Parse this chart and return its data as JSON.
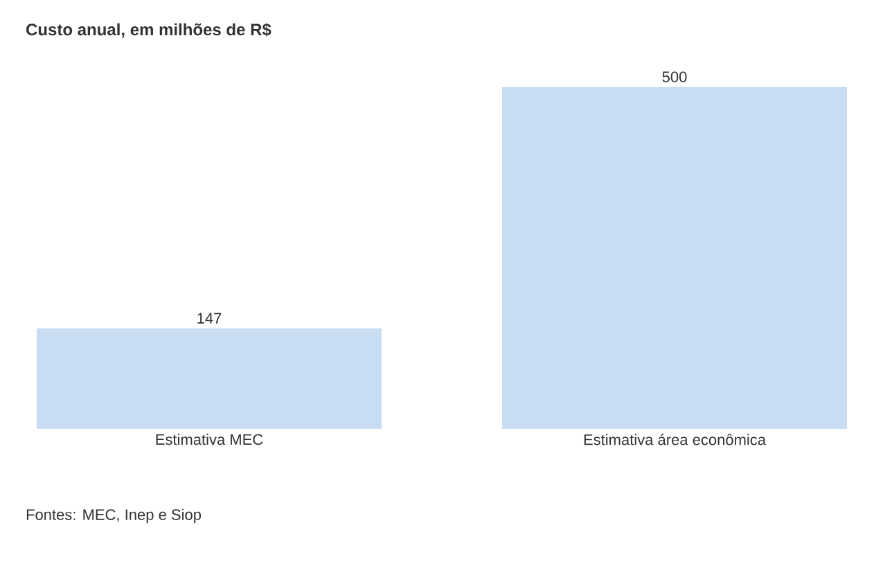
{
  "chart_data": {
    "type": "bar",
    "title": "Custo anual, em milhões de R$",
    "categories": [
      "Estimativa MEC",
      "Estimativa área econômica"
    ],
    "values": [
      147,
      500
    ],
    "color": "#c9ddf2",
    "data_labels": true,
    "annotations": [
      "Fontes: MEC, Inep e Siop"
    ]
  }
}
